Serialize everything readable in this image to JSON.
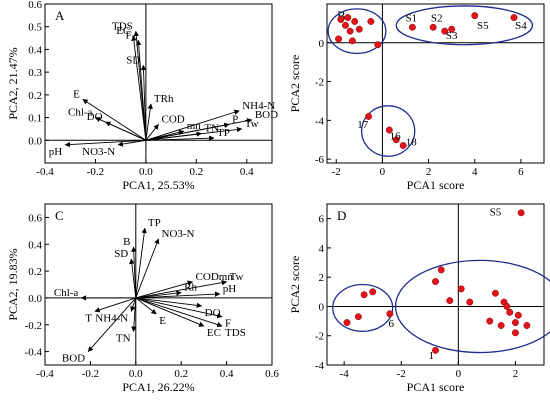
{
  "chart_data": [
    {
      "type": "biplot",
      "panel_label": "A",
      "xlabel": "PCA1, 25.53%",
      "ylabel": "PCA2, 21.47%",
      "xlim": [
        -0.4,
        0.5
      ],
      "ylim": [
        -0.1,
        0.6
      ],
      "xticks": [
        -0.4,
        -0.2,
        0.0,
        0.2,
        0.4
      ],
      "yticks": [
        0.0,
        0.1,
        0.2,
        0.3,
        0.4,
        0.5,
        0.6
      ],
      "vectors": [
        {
          "label": "TDS",
          "x": -0.04,
          "y": 0.48
        },
        {
          "label": "EC",
          "x": -0.05,
          "y": 0.46
        },
        {
          "label": "F-",
          "x": -0.03,
          "y": 0.44
        },
        {
          "label": "SD",
          "x": -0.01,
          "y": 0.33
        },
        {
          "label": "E",
          "x": -0.25,
          "y": 0.18
        },
        {
          "label": "Chl-a",
          "x": -0.2,
          "y": 0.1
        },
        {
          "label": "DO",
          "x": -0.16,
          "y": 0.08
        },
        {
          "label": "TRh",
          "x": 0.02,
          "y": 0.16
        },
        {
          "label": "COD",
          "x": 0.05,
          "y": 0.07
        },
        {
          "label": "mn",
          "x": 0.15,
          "y": 0.04
        },
        {
          "label": "NH4-N",
          "x": 0.37,
          "y": 0.13
        },
        {
          "label": "P",
          "x": 0.33,
          "y": 0.07
        },
        {
          "label": "BOD",
          "x": 0.42,
          "y": 0.09
        },
        {
          "label": "Tw",
          "x": 0.38,
          "y": 0.05
        },
        {
          "label": "TN",
          "x": 0.22,
          "y": 0.03
        },
        {
          "label": "TP",
          "x": 0.27,
          "y": 0.01
        },
        {
          "label": "pH",
          "x": -0.32,
          "y": -0.02
        },
        {
          "label": "NO3-N",
          "x": -0.11,
          "y": -0.02
        }
      ]
    },
    {
      "type": "scatter",
      "panel_label": "B",
      "xlabel": "PCA1 score",
      "ylabel": "PCA2 score",
      "xlim": [
        -2.4,
        7.0
      ],
      "ylim": [
        -6.2,
        2.0
      ],
      "xticks": [
        -2,
        0,
        2,
        4,
        6
      ],
      "yticks": [
        -6,
        -4,
        -2,
        0
      ],
      "points": [
        {
          "x": -1.8,
          "y": 1.2
        },
        {
          "x": -1.5,
          "y": 1.3
        },
        {
          "x": -1.6,
          "y": 0.9
        },
        {
          "x": -1.2,
          "y": 1.1
        },
        {
          "x": -1.4,
          "y": 0.6
        },
        {
          "x": -1.0,
          "y": 0.7
        },
        {
          "x": -1.9,
          "y": 0.2
        },
        {
          "x": -1.3,
          "y": 0.1
        },
        {
          "x": -0.5,
          "y": 1.1
        },
        {
          "x": -0.2,
          "y": -0.1
        },
        {
          "x": 1.3,
          "y": 0.8
        },
        {
          "x": 2.2,
          "y": 0.8
        },
        {
          "x": 2.7,
          "y": 0.6
        },
        {
          "x": 3.0,
          "y": 0.7
        },
        {
          "x": 4.0,
          "y": 1.4
        },
        {
          "x": 5.7,
          "y": 1.3
        },
        {
          "x": -0.6,
          "y": -3.8
        },
        {
          "x": 0.3,
          "y": -4.5
        },
        {
          "x": 0.6,
          "y": -5.0
        },
        {
          "x": 0.9,
          "y": -5.3
        }
      ],
      "point_labels": [
        {
          "label": "S1",
          "x": 1.25,
          "y": 1.1
        },
        {
          "label": "S2",
          "x": 2.35,
          "y": 1.1
        },
        {
          "label": "S3",
          "x": 3.0,
          "y": 0.2
        },
        {
          "label": "S5",
          "x": 4.35,
          "y": 0.7
        },
        {
          "label": "S4",
          "x": 6.0,
          "y": 0.7
        },
        {
          "label": "17",
          "x": -0.85,
          "y": -4.4
        },
        {
          "label": "16",
          "x": 0.55,
          "y": -5.0
        },
        {
          "label": "18",
          "x": 1.25,
          "y": -5.3
        }
      ],
      "ellipses": [
        {
          "cx": -1.1,
          "cy": 0.6,
          "rx": 1.25,
          "ry": 1.15
        },
        {
          "cx": 3.55,
          "cy": 0.9,
          "rx": 2.95,
          "ry": 1.0
        },
        {
          "cx": 0.25,
          "cy": -4.55,
          "rx": 1.15,
          "ry": 1.3
        }
      ]
    },
    {
      "type": "biplot",
      "panel_label": "C",
      "xlabel": "PCA1, 26.22%",
      "ylabel": "PCA2, 19.83%",
      "xlim": [
        -0.4,
        0.6
      ],
      "ylim": [
        -0.5,
        0.7
      ],
      "xticks": [
        -0.4,
        -0.2,
        0.0,
        0.2,
        0.4,
        0.6
      ],
      "yticks": [
        -0.4,
        -0.2,
        0.0,
        0.2,
        0.4,
        0.6
      ],
      "vectors": [
        {
          "label": "TP",
          "x": 0.04,
          "y": 0.52
        },
        {
          "label": "NO3-N",
          "x": 0.1,
          "y": 0.44
        },
        {
          "label": "B",
          "x": -0.01,
          "y": 0.38
        },
        {
          "label": "SD",
          "x": -0.02,
          "y": 0.29
        },
        {
          "label": "CODmn",
          "x": 0.25,
          "y": 0.12
        },
        {
          "label": "Tw",
          "x": 0.4,
          "y": 0.12
        },
        {
          "label": "pH",
          "x": 0.37,
          "y": 0.03
        },
        {
          "label": "Rh",
          "x": 0.2,
          "y": 0.04
        },
        {
          "label": "DO",
          "x": 0.29,
          "y": -0.06
        },
        {
          "label": "F",
          "x": 0.38,
          "y": -0.14
        },
        {
          "label": "EC",
          "x": 0.3,
          "y": -0.21
        },
        {
          "label": "TDS",
          "x": 0.38,
          "y": -0.21
        },
        {
          "label": "E",
          "x": 0.09,
          "y": -0.12
        },
        {
          "label": "NH4-N",
          "x": -0.02,
          "y": -0.1
        },
        {
          "label": "T",
          "x": -0.18,
          "y": -0.1
        },
        {
          "label": "Chl-a",
          "x": -0.24,
          "y": 0.0
        },
        {
          "label": "TN",
          "x": -0.01,
          "y": -0.25
        },
        {
          "label": "BOD",
          "x": -0.21,
          "y": -0.4
        }
      ]
    },
    {
      "type": "scatter",
      "panel_label": "D",
      "xlabel": "PCA1 score",
      "ylabel": "PCA2 score",
      "xlim": [
        -4.6,
        3.0
      ],
      "ylim": [
        -4.0,
        7.0
      ],
      "xticks": [
        -4,
        -2,
        0,
        2
      ],
      "yticks": [
        -4,
        -2,
        0,
        2,
        4,
        6
      ],
      "points": [
        {
          "x": -3.9,
          "y": -1.1
        },
        {
          "x": -3.5,
          "y": -0.7
        },
        {
          "x": -3.3,
          "y": 0.8
        },
        {
          "x": -3.0,
          "y": 1.0
        },
        {
          "x": -2.4,
          "y": -0.5
        },
        {
          "x": -0.8,
          "y": -3.0
        },
        {
          "x": -0.8,
          "y": 1.7
        },
        {
          "x": -0.6,
          "y": 2.5
        },
        {
          "x": -0.3,
          "y": 0.4
        },
        {
          "x": 0.4,
          "y": 0.3
        },
        {
          "x": 0.1,
          "y": 1.2
        },
        {
          "x": 1.3,
          "y": 0.9
        },
        {
          "x": 1.6,
          "y": 0.3
        },
        {
          "x": 1.7,
          "y": 0.0
        },
        {
          "x": 1.1,
          "y": -1.0
        },
        {
          "x": 1.5,
          "y": -1.3
        },
        {
          "x": 1.8,
          "y": -0.4
        },
        {
          "x": 2.0,
          "y": -1.1
        },
        {
          "x": 2.1,
          "y": -0.6
        },
        {
          "x": 2.4,
          "y": -1.3
        },
        {
          "x": 2.0,
          "y": -1.8
        },
        {
          "x": 2.2,
          "y": 6.4
        }
      ],
      "point_labels": [
        {
          "label": "S5",
          "x": 1.3,
          "y": 6.2
        },
        {
          "label": "6",
          "x": -2.35,
          "y": -1.4
        },
        {
          "label": "1",
          "x": -0.95,
          "y": -3.6
        }
      ],
      "ellipses": [
        {
          "cx": -3.35,
          "cy": -0.1,
          "rx": 1.05,
          "ry": 1.6
        },
        {
          "cx": 0.75,
          "cy": 0.0,
          "rx": 2.95,
          "ry": 3.15
        }
      ]
    }
  ]
}
